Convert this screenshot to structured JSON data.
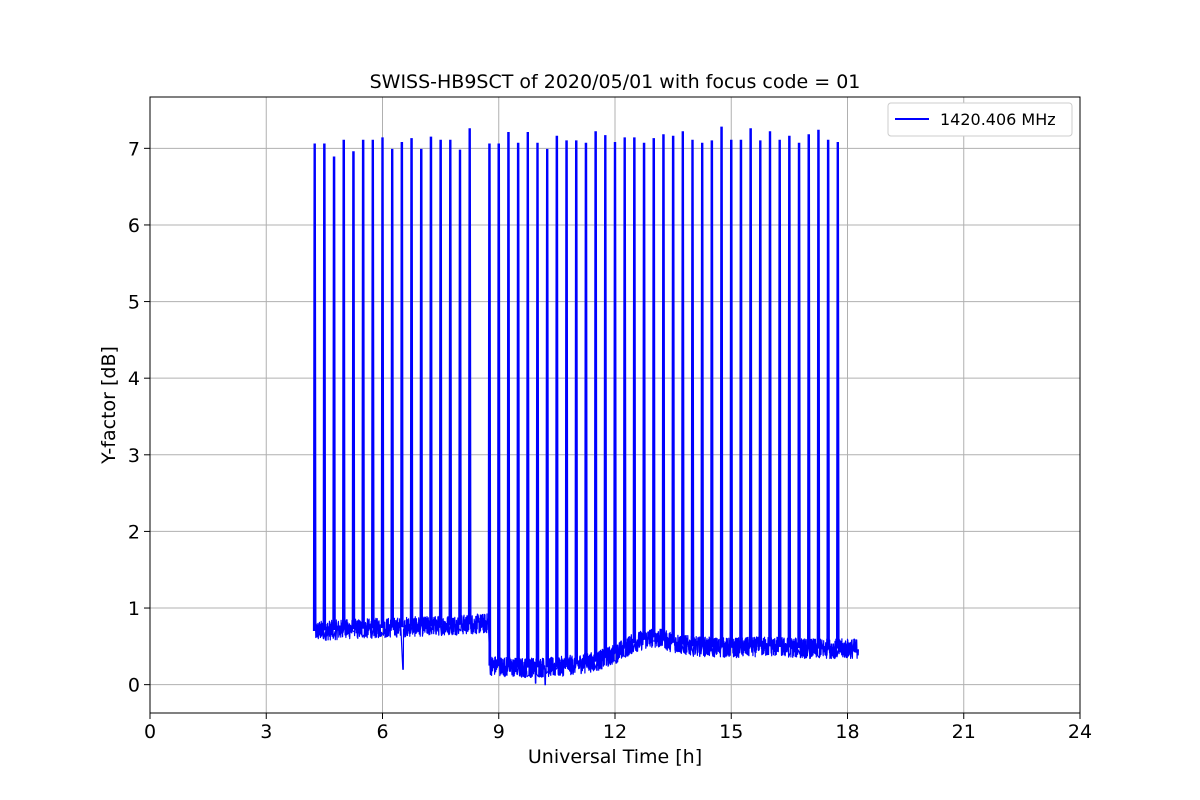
{
  "chart_data": {
    "type": "line",
    "title": "SWISS-HB9SCT of 2020/05/01 with focus code = 01",
    "xlabel": "Universal Time [h]",
    "ylabel": "Y-factor [dB]",
    "xlim": [
      0,
      24
    ],
    "ylim": [
      -0.37,
      7.67
    ],
    "xticks": [
      0,
      3,
      6,
      9,
      12,
      15,
      18,
      21,
      24
    ],
    "yticks": [
      0,
      1,
      2,
      3,
      4,
      5,
      6,
      7
    ],
    "grid": true,
    "legend_position": "top-right",
    "colors": {
      "series": "#0000ff",
      "grid": "#b0b0b0",
      "axes": "#000000"
    },
    "series": [
      {
        "name": "1420.406 MHz",
        "coverage": [
          4.25,
          18.28
        ],
        "step_time": 8.76,
        "baseline": [
          [
            4.25,
            0.7
          ],
          [
            5.0,
            0.72
          ],
          [
            6.0,
            0.74
          ],
          [
            7.0,
            0.76
          ],
          [
            8.0,
            0.78
          ],
          [
            8.75,
            0.8
          ],
          [
            8.78,
            0.25
          ],
          [
            9.5,
            0.22
          ],
          [
            10.5,
            0.23
          ],
          [
            11.5,
            0.3
          ],
          [
            12.0,
            0.4
          ],
          [
            12.5,
            0.55
          ],
          [
            13.0,
            0.62
          ],
          [
            13.5,
            0.55
          ],
          [
            14.0,
            0.5
          ],
          [
            15.0,
            0.48
          ],
          [
            16.0,
            0.5
          ],
          [
            17.0,
            0.47
          ],
          [
            18.28,
            0.47
          ]
        ],
        "dips": [
          [
            6.53,
            0.2
          ],
          [
            9.95,
            0.02
          ],
          [
            10.2,
            0.0
          ]
        ],
        "spikes": [
          [
            4.25,
            7.05
          ],
          [
            4.5,
            7.05
          ],
          [
            4.75,
            6.88
          ],
          [
            5.0,
            7.1
          ],
          [
            5.25,
            6.95
          ],
          [
            5.5,
            7.1
          ],
          [
            5.75,
            7.1
          ],
          [
            6.0,
            7.13
          ],
          [
            6.25,
            6.98
          ],
          [
            6.5,
            7.07
          ],
          [
            6.75,
            7.12
          ],
          [
            7.0,
            6.98
          ],
          [
            7.25,
            7.14
          ],
          [
            7.5,
            7.1
          ],
          [
            7.75,
            7.1
          ],
          [
            8.0,
            6.97
          ],
          [
            8.25,
            7.25
          ],
          [
            8.76,
            7.05
          ],
          [
            9.0,
            7.05
          ],
          [
            9.25,
            7.2
          ],
          [
            9.5,
            7.06
          ],
          [
            9.75,
            7.2
          ],
          [
            10.0,
            7.06
          ],
          [
            10.25,
            6.98
          ],
          [
            10.5,
            7.15
          ],
          [
            10.75,
            7.09
          ],
          [
            11.0,
            7.09
          ],
          [
            11.25,
            7.06
          ],
          [
            11.5,
            7.21
          ],
          [
            11.75,
            7.16
          ],
          [
            12.0,
            7.07
          ],
          [
            12.25,
            7.13
          ],
          [
            12.5,
            7.13
          ],
          [
            12.75,
            7.06
          ],
          [
            13.0,
            7.12
          ],
          [
            13.25,
            7.17
          ],
          [
            13.5,
            7.15
          ],
          [
            13.75,
            7.21
          ],
          [
            14.0,
            7.1
          ],
          [
            14.25,
            7.06
          ],
          [
            14.5,
            7.09
          ],
          [
            14.75,
            7.27
          ],
          [
            15.0,
            7.1
          ],
          [
            15.25,
            7.1
          ],
          [
            15.5,
            7.25
          ],
          [
            15.75,
            7.09
          ],
          [
            16.0,
            7.21
          ],
          [
            16.25,
            7.1
          ],
          [
            16.5,
            7.15
          ],
          [
            16.75,
            7.06
          ],
          [
            17.0,
            7.17
          ],
          [
            17.25,
            7.23
          ],
          [
            17.5,
            7.1
          ],
          [
            17.75,
            7.07
          ]
        ]
      }
    ]
  }
}
